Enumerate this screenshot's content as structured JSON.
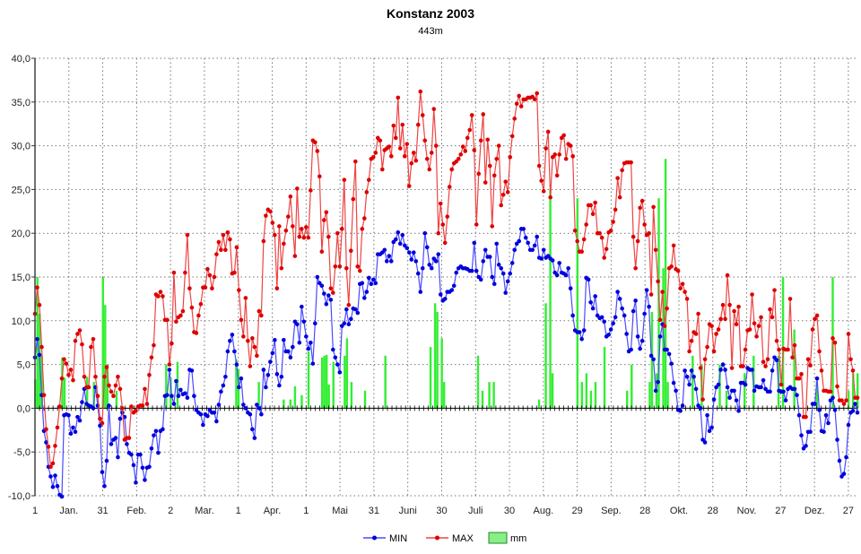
{
  "chart_data": {
    "type": "line",
    "title": "Konstanz 2003",
    "subtitle": "443m",
    "xlabel": "",
    "ylabel": "",
    "xlim": [
      1,
      365
    ],
    "ylim": [
      -10,
      40
    ],
    "grid": true,
    "legend_placement": "bottom-center",
    "y_ticks": [
      "-10,0",
      "-5,0",
      "0,0",
      "5,0",
      "10,0",
      "15,0",
      "20,0",
      "25,0",
      "30,0",
      "35,0",
      "40,0"
    ],
    "y_tick_values": [
      -10,
      -5,
      0,
      5,
      10,
      15,
      20,
      25,
      30,
      35,
      40
    ],
    "x_ticks": [
      {
        "day": 1,
        "label": "1"
      },
      {
        "day": 16,
        "label": "Jan."
      },
      {
        "day": 31,
        "label": "31"
      },
      {
        "day": 46,
        "label": "Feb."
      },
      {
        "day": 61,
        "label": "2"
      },
      {
        "day": 76,
        "label": "Mar."
      },
      {
        "day": 91,
        "label": "1"
      },
      {
        "day": 106,
        "label": "Apr."
      },
      {
        "day": 121,
        "label": "1"
      },
      {
        "day": 136,
        "label": "Mai"
      },
      {
        "day": 151,
        "label": "31"
      },
      {
        "day": 166,
        "label": "Juni"
      },
      {
        "day": 181,
        "label": "30"
      },
      {
        "day": 196,
        "label": "Juli"
      },
      {
        "day": 211,
        "label": "30"
      },
      {
        "day": 226,
        "label": "Aug."
      },
      {
        "day": 241,
        "label": "29"
      },
      {
        "day": 256,
        "label": "Sep."
      },
      {
        "day": 271,
        "label": "28"
      },
      {
        "day": 286,
        "label": "Okt."
      },
      {
        "day": 301,
        "label": "28"
      },
      {
        "day": 316,
        "label": "Nov."
      },
      {
        "day": 331,
        "label": "27"
      },
      {
        "day": 346,
        "label": "Dez."
      },
      {
        "day": 361,
        "label": "27"
      }
    ],
    "series": [
      {
        "name": "MIN",
        "color": "#0000dd",
        "line_color": "#4a4aff",
        "values": [
          5.8,
          7.9,
          6.1,
          1.5,
          -2.6,
          -3.9,
          -6.7,
          -7.8,
          -9.0,
          -7.7,
          -8.9,
          -9.9,
          -10.1,
          -0.8,
          -0.7,
          -0.8,
          -2.9,
          -2.2,
          -2.7,
          -1.0,
          -1.4,
          0.7,
          2.2,
          0.5,
          0.3,
          0.2,
          0.0,
          2.4,
          0.3,
          -2.0,
          -7.3,
          -8.9,
          -6.0,
          0.3,
          -4.1,
          -3.6,
          -3.4,
          -5.6,
          -1.2,
          -0.5,
          -1.0,
          -4.1,
          -5.1,
          -5.3,
          -6.5,
          -8.5,
          -5.3,
          -5.3,
          -6.8,
          -8.2,
          -6.8,
          -6.7,
          -4.6,
          -3.1,
          -2.6,
          -5.1,
          -2.6,
          -2.4,
          1.4,
          1.5,
          4.4,
          1.4,
          0.5,
          3.1,
          1.4,
          2.1,
          1.6,
          1.7,
          1.2,
          4.4,
          4.3,
          1.4,
          -0.2,
          -0.5,
          -0.7,
          -1.9,
          -0.7,
          -0.9,
          -0.2,
          -0.5,
          -0.5,
          -1.5,
          0.4,
          1.9,
          2.6,
          3.6,
          6.5,
          7.7,
          8.4,
          6.5,
          5.0,
          2.4,
          3.4,
          0.4,
          0.0,
          -0.5,
          -0.7,
          -2.4,
          -3.4,
          0.4,
          0.0,
          -0.7,
          4.4,
          2.4,
          3.8,
          5.3,
          6.3,
          7.8,
          3.9,
          2.6,
          3.6,
          7.8,
          6.5,
          6.5,
          5.8,
          7.0,
          9.9,
          9.6,
          7.5,
          11.6,
          9.9,
          8.2,
          6.8,
          7.5,
          5.1,
          9.7,
          15.0,
          14.3,
          14.0,
          13.1,
          11.9,
          12.9,
          12.4,
          6.7,
          5.8,
          5.0,
          4.1,
          9.4,
          9.7,
          11.3,
          9.6,
          10.2,
          11.4,
          11.3,
          10.9,
          14.2,
          14.3,
          12.6,
          13.3,
          14.9,
          14.2,
          14.7,
          14.3,
          17.6,
          17.6,
          17.8,
          18.1,
          16.8,
          17.4,
          16.8,
          19.0,
          19.3,
          20.1,
          18.8,
          19.8,
          18.6,
          18.3,
          17.8,
          17.0,
          17.8,
          16.8,
          15.4,
          13.3,
          16.0,
          20.0,
          18.4,
          16.4,
          16.0,
          17.1,
          16.8,
          17.6,
          13.0,
          12.3,
          12.5,
          13.3,
          13.3,
          13.5,
          14.0,
          15.5,
          16.0,
          16.2,
          16.0,
          16.0,
          15.9,
          15.7,
          15.7,
          18.9,
          15.7,
          15.0,
          14.7,
          16.8,
          18.1,
          17.3,
          17.3,
          15.0,
          14.2,
          18.8,
          16.4,
          16.0,
          15.4,
          13.2,
          14.5,
          15.4,
          16.6,
          18.1,
          18.8,
          19.1,
          20.5,
          20.5,
          19.5,
          18.9,
          18.1,
          18.1,
          18.6,
          19.6,
          17.2,
          17.1,
          18.1,
          17.2,
          17.4,
          17.1,
          16.9,
          15.5,
          15.2,
          16.6,
          15.5,
          15.4,
          15.2,
          16.0,
          13.7,
          10.6,
          8.9,
          8.7,
          8.7,
          7.9,
          8.9,
          14.9,
          14.7,
          12.1,
          11.4,
          12.8,
          10.6,
          10.3,
          10.4,
          9.9,
          8.2,
          8.4,
          9.0,
          9.7,
          10.4,
          13.3,
          12.5,
          11.4,
          10.6,
          8.5,
          6.5,
          6.7,
          11.1,
          12.3,
          8.2,
          6.8,
          7.7,
          10.8,
          13.5,
          11.6,
          6.0,
          5.6,
          2.0,
          3.0,
          8.2,
          9.6,
          6.7,
          6.7,
          6.2,
          5.1,
          2.9,
          2.0,
          -0.2,
          -0.3,
          0.3,
          4.3,
          3.6,
          2.7,
          4.3,
          3.6,
          2.2,
          0.3,
          0.0,
          -3.6,
          -3.9,
          -0.8,
          -2.6,
          -2.2,
          1.0,
          2.4,
          2.7,
          4.4,
          5.0,
          4.4,
          2.4,
          1.2,
          2.0,
          2.0,
          0.9,
          -0.3,
          2.9,
          2.9,
          2.7,
          4.6,
          4.4,
          4.4,
          2.0,
          2.5,
          2.4,
          2.4,
          3.2,
          2.2,
          1.9,
          1.9,
          4.3,
          5.8,
          5.5,
          2.0,
          1.9,
          1.9,
          0.9,
          2.2,
          2.4,
          2.2,
          2.2,
          1.5,
          -0.8,
          -3.1,
          -4.6,
          -4.3,
          -2.7,
          -2.7,
          0.5,
          0.5,
          3.4,
          -0.2,
          -2.6,
          -2.7,
          -0.8,
          -1.7,
          0.9,
          1.2,
          -0.2,
          -3.6,
          -6.0,
          -7.8,
          -7.5,
          -5.6,
          -1.9,
          -0.5,
          -0.3,
          0.5,
          -0.5
        ]
      },
      {
        "name": "MAX",
        "color": "#dd0000",
        "line_color": "#ee4444",
        "values": [
          10.8,
          13.8,
          11.8,
          7.0,
          1.5,
          -2.4,
          -4.4,
          -6.7,
          -6.3,
          -4.3,
          -2.2,
          0.2,
          3.4,
          5.6,
          5.1,
          3.8,
          4.4,
          3.2,
          7.7,
          8.5,
          8.9,
          7.3,
          3.6,
          2.4,
          2.4,
          7.0,
          7.9,
          3.6,
          1.4,
          -1.2,
          -1.7,
          3.6,
          4.7,
          2.6,
          1.9,
          1.4,
          2.6,
          3.6,
          2.2,
          0.0,
          -3.6,
          -3.4,
          -3.4,
          0.2,
          -0.5,
          -0.3,
          0.2,
          0.3,
          0.3,
          2.2,
          0.5,
          3.8,
          5.8,
          7.2,
          13.0,
          12.8,
          13.3,
          12.8,
          10.1,
          10.1,
          5.0,
          7.4,
          15.5,
          9.9,
          10.4,
          10.6,
          11.1,
          15.5,
          19.8,
          13.7,
          11.5,
          8.7,
          8.6,
          10.6,
          11.9,
          13.8,
          13.8,
          15.9,
          15.2,
          13.7,
          15.0,
          17.6,
          19.0,
          18.1,
          19.8,
          18.1,
          20.1,
          19.3,
          15.4,
          15.5,
          18.4,
          13.5,
          10.1,
          8.2,
          12.6,
          7.7,
          4.8,
          8.0,
          7.0,
          6.0,
          11.1,
          10.6,
          19.1,
          22.0,
          22.7,
          22.5,
          21.2,
          19.8,
          13.7,
          20.8,
          16.0,
          18.8,
          20.3,
          21.9,
          24.2,
          20.8,
          17.4,
          25.1,
          19.6,
          20.5,
          19.5,
          20.7,
          19.5,
          24.9,
          30.6,
          30.4,
          29.4,
          26.5,
          17.9,
          21.5,
          22.4,
          19.6,
          13.7,
          13.2,
          16.2,
          20.0,
          16.2,
          20.5,
          26.1,
          16.0,
          11.8,
          18.0,
          23.9,
          28.2,
          16.2,
          15.7,
          20.5,
          21.7,
          24.7,
          26.1,
          28.5,
          28.7,
          29.2,
          30.9,
          30.6,
          27.3,
          29.5,
          29.7,
          29.9,
          28.8,
          32.3,
          30.9,
          35.5,
          29.7,
          32.4,
          28.8,
          30.2,
          25.4,
          28.0,
          29.2,
          28.3,
          32.4,
          36.2,
          33.5,
          30.6,
          28.5,
          27.3,
          29.2,
          34.2,
          30.0,
          20.0,
          23.4,
          21.0,
          18.9,
          21.9,
          25.3,
          27.3,
          28.0,
          28.2,
          28.5,
          29.0,
          29.9,
          29.4,
          30.9,
          31.8,
          33.5,
          29.5,
          21.0,
          26.8,
          30.6,
          33.6,
          25.8,
          30.7,
          27.7,
          20.8,
          26.6,
          28.5,
          30.0,
          23.2,
          24.4,
          25.9,
          24.7,
          28.7,
          31.1,
          33.1,
          34.8,
          35.7,
          34.5,
          35.3,
          35.3,
          35.5,
          35.5,
          35.6,
          35.3,
          36.0,
          27.7,
          26.0,
          24.8,
          29.7,
          31.6,
          24.1,
          28.7,
          29.0,
          26.6,
          29.0,
          30.9,
          31.2,
          28.5,
          30.2,
          30.0,
          28.8,
          20.3,
          19.1,
          17.9,
          17.9,
          19.3,
          21.0,
          23.2,
          23.2,
          22.2,
          23.5,
          20.0,
          20.0,
          19.5,
          17.2,
          18.2,
          20.1,
          20.3,
          21.3,
          22.7,
          26.3,
          24.1,
          27.2,
          28.0,
          28.1,
          28.1,
          28.1,
          19.6,
          16.0,
          19.1,
          22.9,
          23.7,
          21.0,
          19.8,
          20.0,
          13.0,
          23.0,
          18.1,
          14.5,
          10.1,
          13.3,
          9.4,
          11.4,
          16.0,
          16.2,
          18.6,
          15.9,
          15.7,
          13.7,
          14.2,
          13.3,
          12.5,
          6.5,
          7.7,
          8.7,
          8.5,
          10.8,
          4.6,
          1.0,
          5.6,
          7.0,
          9.6,
          9.4,
          6.5,
          8.5,
          9.0,
          10.2,
          11.8,
          10.2,
          15.2,
          11.8,
          4.6,
          11.1,
          9.6,
          11.6,
          4.8,
          4.8,
          6.7,
          8.9,
          9.0,
          13.0,
          9.7,
          8.2,
          9.4,
          10.4,
          5.3,
          4.8,
          5.6,
          11.3,
          10.4,
          13.5,
          7.7,
          6.7,
          2.7,
          6.8,
          6.7,
          6.7,
          12.5,
          5.8,
          7.2,
          3.4,
          3.4,
          3.9,
          -1.0,
          -1.0,
          5.6,
          4.9,
          9.0,
          10.2,
          10.6,
          6.5,
          4.3,
          2.0,
          2.0,
          1.9,
          1.9,
          8.0,
          7.5,
          2.5,
          0.9,
          0.9,
          0.5,
          0.9,
          8.5,
          5.6,
          4.3,
          1.2,
          1.2
        ]
      },
      {
        "name": "mm",
        "type": "bar",
        "color": "#33ee33",
        "points": [
          [
            1,
            3.3
          ],
          [
            2,
            15
          ],
          [
            3,
            10.8
          ],
          [
            4,
            6
          ],
          [
            13,
            5.8
          ],
          [
            14,
            3.5
          ],
          [
            24,
            3.6
          ],
          [
            27,
            3
          ],
          [
            31,
            15
          ],
          [
            32,
            11.8
          ],
          [
            33,
            5
          ],
          [
            37,
            2
          ],
          [
            59,
            5
          ],
          [
            61,
            3.5
          ],
          [
            64,
            5.3
          ],
          [
            90,
            5.6
          ],
          [
            91,
            4.5
          ],
          [
            100,
            3
          ],
          [
            111,
            1
          ],
          [
            114,
            1
          ],
          [
            116,
            2.5
          ],
          [
            119,
            1.5
          ],
          [
            122,
            6.5
          ],
          [
            128,
            5.8
          ],
          [
            129,
            6
          ],
          [
            130,
            6.1
          ],
          [
            131,
            2.7
          ],
          [
            133,
            5.3
          ],
          [
            138,
            6
          ],
          [
            139,
            8
          ],
          [
            141,
            3
          ],
          [
            147,
            2
          ],
          [
            156,
            6
          ],
          [
            176,
            7
          ],
          [
            178,
            12
          ],
          [
            179,
            11
          ],
          [
            181,
            8
          ],
          [
            182,
            3
          ],
          [
            197,
            6
          ],
          [
            199,
            2
          ],
          [
            202,
            3
          ],
          [
            204,
            3
          ],
          [
            224,
            1
          ],
          [
            227,
            12
          ],
          [
            229,
            25
          ],
          [
            230,
            4
          ],
          [
            241,
            24
          ],
          [
            243,
            3
          ],
          [
            245,
            4
          ],
          [
            247,
            2
          ],
          [
            249,
            3
          ],
          [
            253,
            7
          ],
          [
            263,
            2
          ],
          [
            265,
            5
          ],
          [
            273,
            3
          ],
          [
            274,
            11
          ],
          [
            276,
            4
          ],
          [
            277,
            24
          ],
          [
            279,
            16
          ],
          [
            280,
            28.5
          ],
          [
            281,
            3
          ],
          [
            292,
            6
          ],
          [
            296,
            5
          ],
          [
            304,
            5
          ],
          [
            307,
            2
          ],
          [
            315,
            4
          ],
          [
            319,
            6
          ],
          [
            330,
            6
          ],
          [
            332,
            15
          ],
          [
            337,
            9
          ],
          [
            347,
            3
          ],
          [
            354,
            15
          ],
          [
            361,
            2
          ],
          [
            363,
            4
          ],
          [
            365,
            4
          ]
        ]
      }
    ]
  }
}
